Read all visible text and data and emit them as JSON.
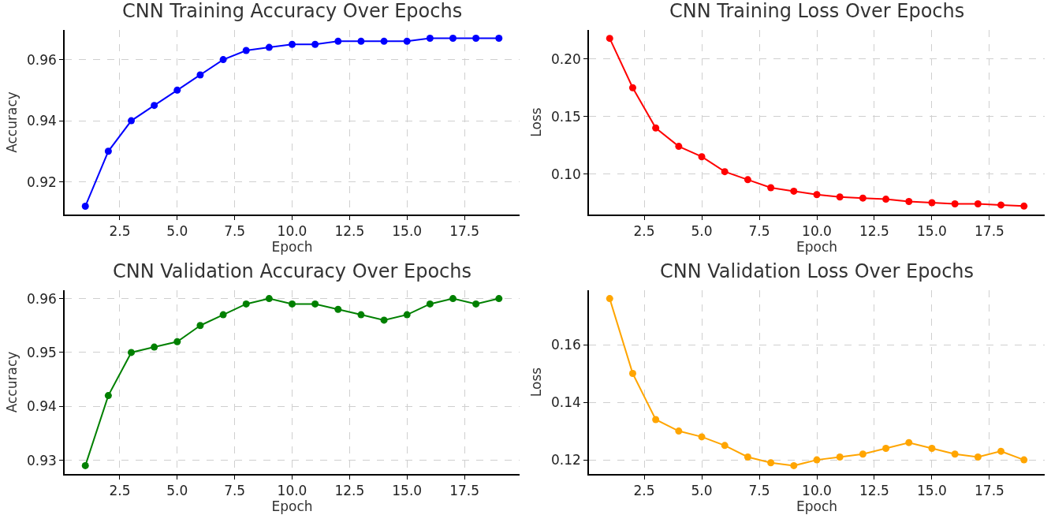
{
  "chart_data": [
    {
      "type": "line",
      "title": "CNN Training Accuracy Over Epochs",
      "xlabel": "Epoch",
      "ylabel": "Accuracy",
      "x": [
        1,
        2,
        3,
        4,
        5,
        6,
        7,
        8,
        9,
        10,
        11,
        12,
        13,
        14,
        15,
        16,
        17,
        18,
        19
      ],
      "series": [
        {
          "color": "#0000ff",
          "values": [
            0.912,
            0.93,
            0.94,
            0.945,
            0.95,
            0.955,
            0.96,
            0.963,
            0.964,
            0.965,
            0.965,
            0.966,
            0.966,
            0.966,
            0.966,
            0.967,
            0.967,
            0.967,
            0.967
          ]
        }
      ],
      "xlim": [
        0.1,
        19.9
      ],
      "ylim": [
        0.9093,
        0.9697
      ],
      "xticks": [
        {
          "value": 2.5,
          "label": "2.5"
        },
        {
          "value": 5,
          "label": "5.0"
        },
        {
          "value": 7.5,
          "label": "7.5"
        },
        {
          "value": 10,
          "label": "10.0"
        },
        {
          "value": 12.5,
          "label": "12.5"
        },
        {
          "value": 15,
          "label": "15.0"
        },
        {
          "value": 17.5,
          "label": "17.5"
        }
      ],
      "yticks": [
        0.92,
        0.94,
        0.96
      ],
      "grid": true,
      "marker": "circle",
      "line_style": "solid"
    },
    {
      "type": "line",
      "title": "CNN Training Loss Over Epochs",
      "xlabel": "Epoch",
      "ylabel": "Loss",
      "x": [
        1,
        2,
        3,
        4,
        5,
        6,
        7,
        8,
        9,
        10,
        11,
        12,
        13,
        14,
        15,
        16,
        17,
        18,
        19
      ],
      "series": [
        {
          "color": "#ff0000",
          "values": [
            0.218,
            0.175,
            0.14,
            0.124,
            0.115,
            0.102,
            0.095,
            0.088,
            0.085,
            0.082,
            0.08,
            0.079,
            0.078,
            0.076,
            0.075,
            0.074,
            0.074,
            0.073,
            0.072
          ]
        }
      ],
      "xlim": [
        0.1,
        19.9
      ],
      "ylim": [
        0.0647,
        0.2253
      ],
      "xticks": [
        {
          "value": 2.5,
          "label": "2.5"
        },
        {
          "value": 5,
          "label": "5.0"
        },
        {
          "value": 7.5,
          "label": "7.5"
        },
        {
          "value": 10,
          "label": "10.0"
        },
        {
          "value": 12.5,
          "label": "12.5"
        },
        {
          "value": 15,
          "label": "15.0"
        },
        {
          "value": 17.5,
          "label": "17.5"
        }
      ],
      "yticks": [
        {
          "value": 0.1,
          "label": "0.10"
        },
        0.15,
        {
          "value": 0.2,
          "label": "0.20"
        }
      ],
      "grid": true,
      "marker": "circle",
      "line_style": "solid"
    },
    {
      "type": "line",
      "title": "CNN Validation Accuracy Over Epochs",
      "xlabel": "Epoch",
      "ylabel": "Accuracy",
      "x": [
        1,
        2,
        3,
        4,
        5,
        6,
        7,
        8,
        9,
        10,
        11,
        12,
        13,
        14,
        15,
        16,
        17,
        18,
        19
      ],
      "series": [
        {
          "color": "#008000",
          "values": [
            0.929,
            0.942,
            0.95,
            0.951,
            0.952,
            0.955,
            0.957,
            0.959,
            0.96,
            0.959,
            0.959,
            0.958,
            0.957,
            0.956,
            0.957,
            0.959,
            0.96,
            0.959,
            0.96
          ]
        }
      ],
      "xlim": [
        0.1,
        19.9
      ],
      "ylim": [
        0.92745,
        0.96155
      ],
      "xticks": [
        {
          "value": 2.5,
          "label": "2.5"
        },
        {
          "value": 5,
          "label": "5.0"
        },
        {
          "value": 7.5,
          "label": "7.5"
        },
        {
          "value": 10,
          "label": "10.0"
        },
        {
          "value": 12.5,
          "label": "12.5"
        },
        {
          "value": 15,
          "label": "15.0"
        },
        {
          "value": 17.5,
          "label": "17.5"
        }
      ],
      "yticks": [
        0.93,
        0.94,
        {
          "value": 0.95,
          "label": "0.95"
        },
        {
          "value": 0.96,
          "label": "0.96"
        }
      ],
      "grid": true,
      "marker": "circle",
      "line_style": "solid"
    },
    {
      "type": "line",
      "title": "CNN Validation Loss Over Epochs",
      "xlabel": "Epoch",
      "ylabel": "Loss",
      "x": [
        1,
        2,
        3,
        4,
        5,
        6,
        7,
        8,
        9,
        10,
        11,
        12,
        13,
        14,
        15,
        16,
        17,
        18,
        19
      ],
      "series": [
        {
          "color": "#ffa500",
          "values": [
            0.176,
            0.15,
            0.134,
            0.13,
            0.128,
            0.125,
            0.121,
            0.119,
            0.118,
            0.12,
            0.121,
            0.122,
            0.124,
            0.126,
            0.124,
            0.122,
            0.121,
            0.123,
            0.12
          ]
        }
      ],
      "xlim": [
        0.1,
        19.9
      ],
      "ylim": [
        0.1151,
        0.1789
      ],
      "xticks": [
        {
          "value": 2.5,
          "label": "2.5"
        },
        {
          "value": 5,
          "label": "5.0"
        },
        {
          "value": 7.5,
          "label": "7.5"
        },
        {
          "value": 10,
          "label": "10.0"
        },
        {
          "value": 12.5,
          "label": "12.5"
        },
        {
          "value": 15,
          "label": "15.0"
        },
        {
          "value": 17.5,
          "label": "17.5"
        }
      ],
      "yticks": [
        {
          "value": 0.12,
          "label": "0.12"
        },
        0.14,
        {
          "value": 0.16,
          "label": "0.16"
        }
      ],
      "grid": true,
      "marker": "circle",
      "line_style": "solid"
    }
  ]
}
